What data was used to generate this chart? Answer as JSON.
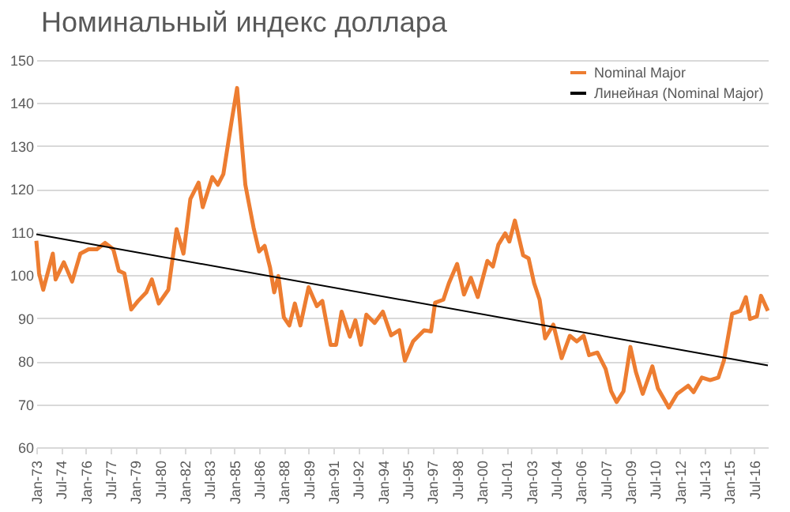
{
  "chart_data": {
    "type": "line",
    "title": "Номинальный индекс доллара",
    "x": [
      "1973-01",
      "1973-03",
      "1973-06",
      "1974-01",
      "1974-03",
      "1974-09",
      "1975-03",
      "1975-09",
      "1976-03",
      "1976-09",
      "1977-03",
      "1977-09",
      "1978-01",
      "1978-05",
      "1978-10",
      "1979-03",
      "1979-09",
      "1980-01",
      "1980-06",
      "1981-01",
      "1981-07",
      "1981-12",
      "1982-05",
      "1982-11",
      "1983-02",
      "1983-09",
      "1984-01",
      "1984-05",
      "1984-11",
      "1985-03",
      "1985-09",
      "1986-03",
      "1986-07",
      "1986-11",
      "1987-03",
      "1987-06",
      "1987-09",
      "1988-01",
      "1988-05",
      "1988-09",
      "1989-01",
      "1989-07",
      "1990-01",
      "1990-05",
      "1990-11",
      "1991-03",
      "1991-07",
      "1992-01",
      "1992-05",
      "1992-09",
      "1993-01",
      "1993-07",
      "1994-01",
      "1994-07",
      "1995-01",
      "1995-05",
      "1995-11",
      "1996-07",
      "1996-12",
      "1997-03",
      "1997-09",
      "1998-01",
      "1998-07",
      "1998-12",
      "1999-05",
      "1999-10",
      "2000-05",
      "2000-09",
      "2001-01",
      "2001-06",
      "2001-09",
      "2002-01",
      "2002-07",
      "2002-11",
      "2003-03",
      "2003-07",
      "2003-11",
      "2004-05",
      "2004-11",
      "2005-05",
      "2005-10",
      "2006-03",
      "2006-07",
      "2007-01",
      "2007-07",
      "2007-11",
      "2008-03",
      "2008-08",
      "2009-01",
      "2009-05",
      "2009-10",
      "2010-05",
      "2010-09",
      "2011-05",
      "2011-11",
      "2012-07",
      "2012-11",
      "2013-05",
      "2013-11",
      "2014-05",
      "2014-09",
      "2015-03",
      "2015-09",
      "2016-01",
      "2016-04",
      "2016-09",
      "2016-12",
      "2017-05"
    ],
    "series": [
      {
        "name": "Nominal Major",
        "color": "#ed7d31",
        "values": [
          108,
          100.4,
          96.6,
          105,
          99,
          103,
          98.5,
          105,
          106,
          106,
          107.5,
          106,
          101,
          100.4,
          92,
          94,
          96,
          99,
          93.4,
          96.6,
          110.7,
          105,
          117.7,
          121.5,
          115.8,
          122.8,
          121,
          123.5,
          135.8,
          143.5,
          121,
          111,
          105.5,
          106.8,
          101.7,
          96,
          99.8,
          90.2,
          88.3,
          93.4,
          88.3,
          97.2,
          92.8,
          94,
          83.8,
          83.8,
          91.5,
          85.7,
          89.5,
          83.8,
          90.8,
          88.9,
          91.5,
          86,
          87.2,
          80.1,
          84.6,
          87.2,
          86.9,
          93.6,
          94.3,
          98.1,
          102.6,
          95.5,
          99.4,
          94.9,
          103.3,
          102,
          107.1,
          109.7,
          107.8,
          112.7,
          104.6,
          103.9,
          98.1,
          94.3,
          85.3,
          88.5,
          80.7,
          85.9,
          84.6,
          85.9,
          81.4,
          82,
          78.2,
          73,
          70.5,
          73,
          83.3,
          77.5,
          72.4,
          78.8,
          73.7,
          69.2,
          72.4,
          74.3,
          72.8,
          76.2,
          75.6,
          76.2,
          80.1,
          91,
          91.7,
          94.9,
          89.8,
          90.4,
          95.2,
          91.7
        ]
      },
      {
        "name": "Линейная (Nominal Major)",
        "color": "#000000",
        "type": "line",
        "x": [
          "1973-01",
          "2017-05"
        ],
        "values": [
          109.5,
          79
        ]
      }
    ],
    "xlim": [
      "1973-01",
      "2017-05"
    ],
    "xticks": [
      {
        "value": "1973-01",
        "label": "Jan-73"
      },
      {
        "value": "1974-07",
        "label": "Jul-74"
      },
      {
        "value": "1976-01",
        "label": "Jan-76"
      },
      {
        "value": "1977-07",
        "label": "Jul-77"
      },
      {
        "value": "1979-01",
        "label": "Jan-79"
      },
      {
        "value": "1980-07",
        "label": "Jul-80"
      },
      {
        "value": "1982-01",
        "label": "Jan-82"
      },
      {
        "value": "1983-07",
        "label": "Jul-83"
      },
      {
        "value": "1985-01",
        "label": "Jan-85"
      },
      {
        "value": "1986-07",
        "label": "Jul-86"
      },
      {
        "value": "1988-01",
        "label": "Jan-88"
      },
      {
        "value": "1989-07",
        "label": "Jul-89"
      },
      {
        "value": "1991-01",
        "label": "Jan-91"
      },
      {
        "value": "1992-07",
        "label": "Jul-92"
      },
      {
        "value": "1994-01",
        "label": "Jan-94"
      },
      {
        "value": "1995-07",
        "label": "Jul-95"
      },
      {
        "value": "1997-01",
        "label": "Jan-97"
      },
      {
        "value": "1998-07",
        "label": "Jul-98"
      },
      {
        "value": "2000-01",
        "label": "Jan-00"
      },
      {
        "value": "2001-07",
        "label": "Jul-01"
      },
      {
        "value": "2003-01",
        "label": "Jan-03"
      },
      {
        "value": "2004-07",
        "label": "Jul-04"
      },
      {
        "value": "2006-01",
        "label": "Jan-06"
      },
      {
        "value": "2007-07",
        "label": "Jul-07"
      },
      {
        "value": "2009-01",
        "label": "Jan-09"
      },
      {
        "value": "2010-07",
        "label": "Jul-10"
      },
      {
        "value": "2012-01",
        "label": "Jan-12"
      },
      {
        "value": "2013-07",
        "label": "Jul-13"
      },
      {
        "value": "2015-01",
        "label": "Jan-15"
      },
      {
        "value": "2016-07",
        "label": "Jul-16"
      }
    ],
    "ylim": [
      60,
      150
    ],
    "yticks": [
      60,
      70,
      80,
      90,
      100,
      110,
      120,
      130,
      140,
      150
    ],
    "grid": "y",
    "legend": "top right"
  }
}
